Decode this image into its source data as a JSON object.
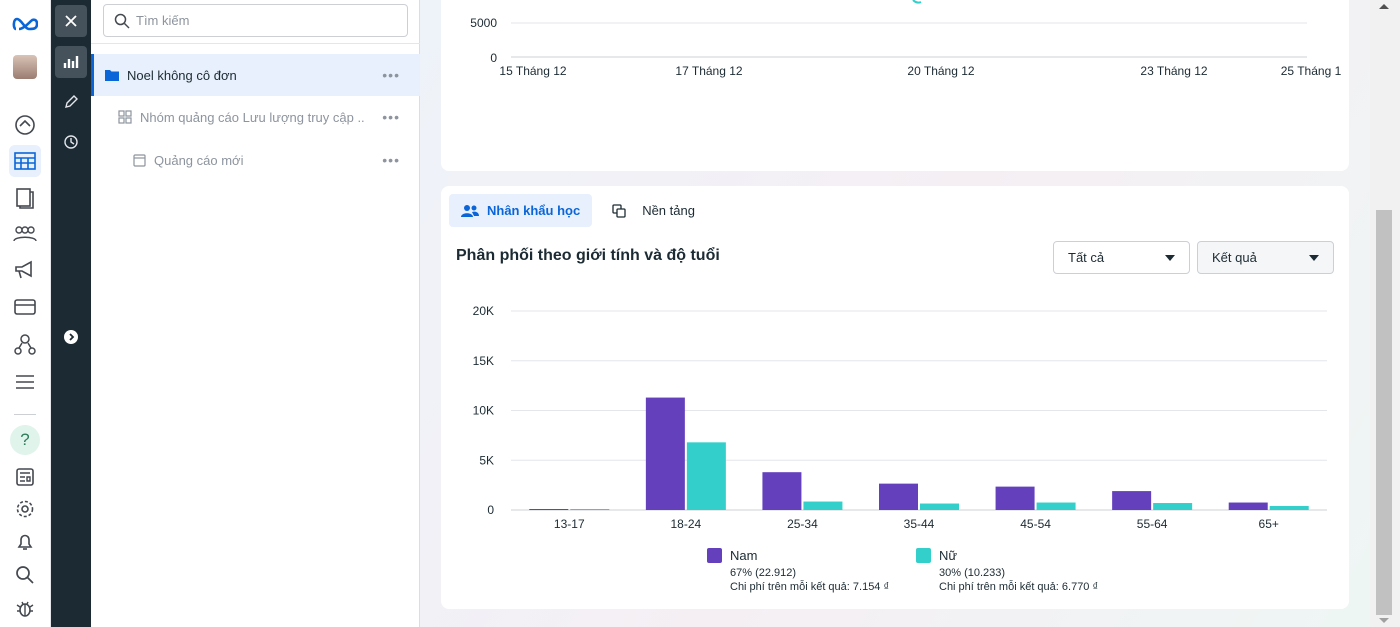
{
  "nav": {
    "icons": [
      "meta-logo-icon",
      "avatar",
      "dashboard-icon",
      "ads-manager-icon",
      "pages-icon",
      "audience-icon",
      "campaign-icon",
      "billing-icon",
      "business-settings-icon",
      "menu-icon",
      "help-icon",
      "news-icon",
      "settings-icon",
      "notifications-icon",
      "search-icon",
      "bug-icon"
    ]
  },
  "tree": {
    "search_placeholder": "Tìm kiếm",
    "items": [
      {
        "label": "Noel không cô đơn",
        "icon": "folder-icon",
        "selected": true
      },
      {
        "label": "Nhóm quảng cáo Lưu lượng truy cập ...",
        "icon": "ad-set-icon",
        "selected": false
      },
      {
        "label": "Quảng cáo mới",
        "icon": "ad-icon",
        "selected": false
      }
    ],
    "more": "•••"
  },
  "top_chart": {
    "y_ticks": [
      "5000",
      "0"
    ],
    "x_ticks": [
      "15 Tháng 12",
      "17 Tháng 12",
      "20 Tháng 12",
      "23 Tháng 12",
      "25 Tháng 1"
    ]
  },
  "tabs": [
    {
      "label": "Nhân khẩu học",
      "active": true
    },
    {
      "label": "Nền tảng",
      "active": false
    }
  ],
  "section_title": "Phân phối theo giới tính và độ tuổi",
  "filters": {
    "audience": "Tất cả",
    "metric": "Kết quả"
  },
  "chart_data": {
    "type": "bar",
    "categories": [
      "13-17",
      "18-24",
      "25-34",
      "35-44",
      "45-54",
      "55-64",
      "65+"
    ],
    "y_tick_labels": [
      "20K",
      "15K",
      "10K",
      "5K",
      "0"
    ],
    "ylim": [
      0,
      20000
    ],
    "grid": true,
    "series": [
      {
        "name": "Nam",
        "color": "#6440bd",
        "values": [
          100,
          11300,
          3800,
          2650,
          2350,
          1900,
          750
        ]
      },
      {
        "name": "Nữ",
        "color": "#33cfcb",
        "values": [
          100,
          6800,
          850,
          650,
          750,
          700,
          400
        ]
      }
    ]
  },
  "legend": [
    {
      "name": "Nam",
      "color": "#6440bd",
      "share": "67% (22.912)",
      "cost": "Chi phí trên mỗi kết quả: 7.154 ₫"
    },
    {
      "name": "Nữ",
      "color": "#33cfcb",
      "share": "30% (10.233)",
      "cost": "Chi phí trên mỗi kết quả: 6.770 ₫"
    }
  ]
}
